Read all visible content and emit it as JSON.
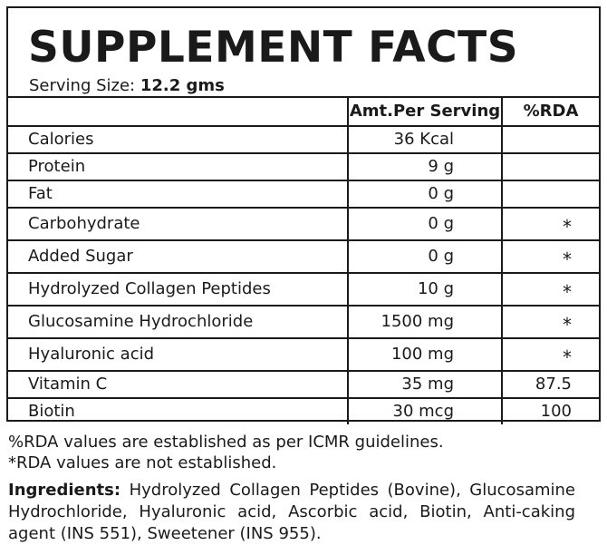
{
  "label": {
    "title": "SUPPLEMENT FACTS",
    "serving_size_label": "Serving Size:",
    "serving_size_value": "12.2 gms"
  },
  "table": {
    "headers": [
      "",
      "Amt.Per Serving",
      "%RDA"
    ],
    "rows": [
      {
        "name": "Calories",
        "amount": "36 Kcal",
        "rda": ""
      },
      {
        "name": "Protein",
        "amount": "9 g",
        "rda": ""
      },
      {
        "name": "Fat",
        "amount": "0 g",
        "rda": ""
      },
      {
        "name": "Carbohydrate",
        "amount": "0 g",
        "rda": "*"
      },
      {
        "name": "Added Sugar",
        "amount": "0 g",
        "rda": "*"
      },
      {
        "name": "Hydrolyzed Collagen Peptides",
        "amount": "10 g",
        "rda": "*"
      },
      {
        "name": "Glucosamine Hydrochloride",
        "amount": "1500 mg",
        "rda": "*"
      },
      {
        "name": "Hyaluronic acid",
        "amount": "100 mg",
        "rda": "*"
      },
      {
        "name": "Vitamin C",
        "amount": "35 mg",
        "rda": "87.5"
      },
      {
        "name": "Biotin",
        "amount": "30 mcg",
        "rda": "100"
      }
    ]
  },
  "notes": {
    "line1": "%RDA values are established as per ICMR guidelines.",
    "line2": "*RDA values are not established."
  },
  "ingredients": {
    "label": "Ingredients:",
    "text": " Hydrolyzed Collagen Peptides (Bovine), Glucosamine Hydrochloride, Hyaluronic acid, Ascorbic acid, Biotin, Anti-caking agent (INS 551), Sweetener (INS 955)."
  }
}
